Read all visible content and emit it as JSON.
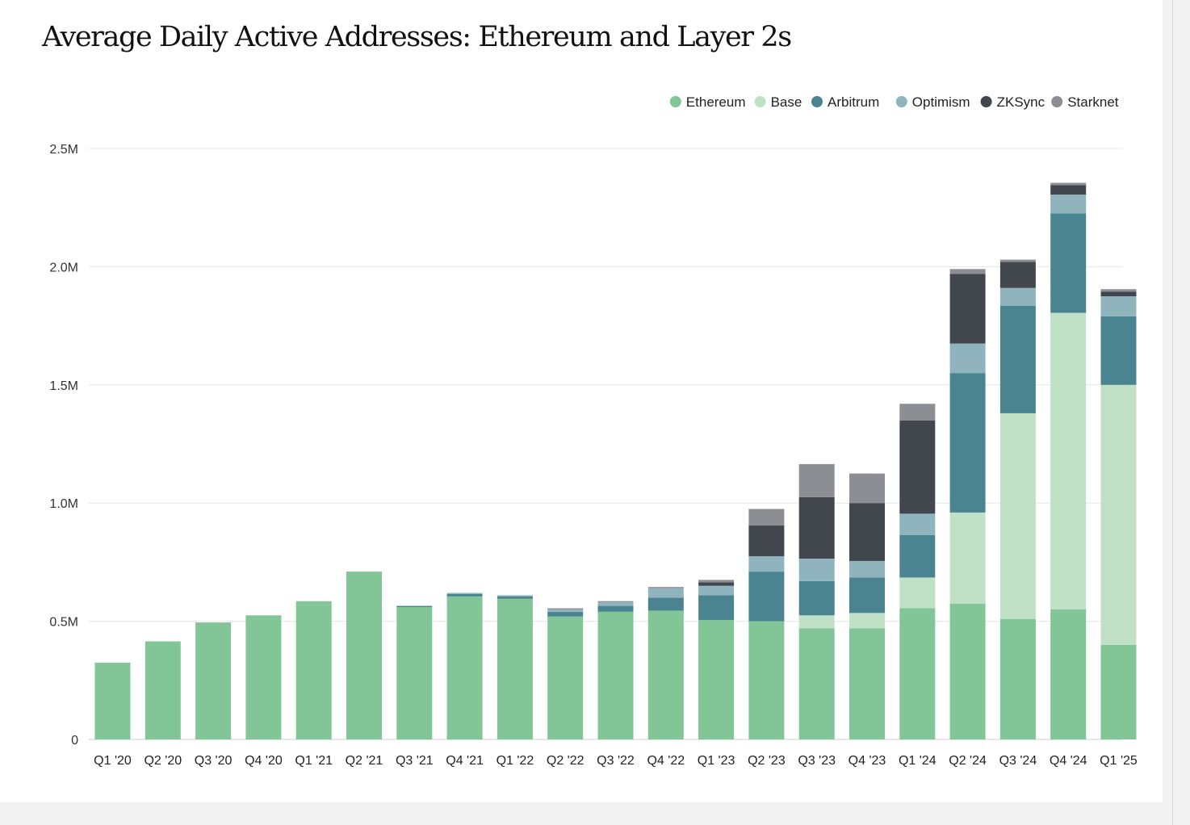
{
  "chart_data": {
    "type": "bar",
    "stacked": true,
    "title": "Average Daily Active Addresses: Ethereum and Layer 2s",
    "xlabel": "",
    "ylabel": "",
    "ylim": [
      0,
      2500000
    ],
    "y_ticks": [
      {
        "value": 0,
        "label": "0"
      },
      {
        "value": 500000,
        "label": "0.5M"
      },
      {
        "value": 1000000,
        "label": "1.0M"
      },
      {
        "value": 1500000,
        "label": "1.5M"
      },
      {
        "value": 2000000,
        "label": "2.0M"
      },
      {
        "value": 2500000,
        "label": "2.5M"
      }
    ],
    "grid": true,
    "legend_position": "top-right",
    "categories": [
      "Q1 '20",
      "Q2 '20",
      "Q3 '20",
      "Q4 '20",
      "Q1 '21",
      "Q2 '21",
      "Q3 '21",
      "Q4 '21",
      "Q1 '22",
      "Q2 '22",
      "Q3 '22",
      "Q4 '22",
      "Q1 '23",
      "Q2 '23",
      "Q3 '23",
      "Q4 '23",
      "Q1 '24",
      "Q2 '24",
      "Q3 '24",
      "Q4 '24",
      "Q1 '25"
    ],
    "series": [
      {
        "name": "Ethereum",
        "color": "#82c596",
        "values": [
          325000,
          415000,
          495000,
          525000,
          585000,
          710000,
          560000,
          605000,
          595000,
          520000,
          540000,
          545000,
          505000,
          500000,
          470000,
          470000,
          555000,
          575000,
          510000,
          550000,
          400000
        ]
      },
      {
        "name": "Base",
        "color": "#c0e1c6",
        "values": [
          0,
          0,
          0,
          0,
          0,
          0,
          0,
          0,
          0,
          0,
          0,
          0,
          0,
          0,
          55000,
          65000,
          130000,
          385000,
          870000,
          1255000,
          1100000
        ]
      },
      {
        "name": "Arbitrum",
        "color": "#4a8490",
        "values": [
          0,
          0,
          0,
          0,
          0,
          0,
          5000,
          10000,
          10000,
          20000,
          25000,
          55000,
          105000,
          210000,
          145000,
          150000,
          180000,
          590000,
          455000,
          420000,
          290000
        ]
      },
      {
        "name": "Optimism",
        "color": "#8fb4bd",
        "values": [
          0,
          0,
          0,
          0,
          0,
          0,
          0,
          5000,
          5000,
          10000,
          15000,
          40000,
          40000,
          65000,
          95000,
          70000,
          90000,
          125000,
          75000,
          80000,
          85000
        ]
      },
      {
        "name": "ZKSync",
        "color": "#42474e",
        "values": [
          0,
          0,
          0,
          0,
          0,
          0,
          0,
          0,
          0,
          0,
          0,
          0,
          15000,
          130000,
          260000,
          245000,
          395000,
          295000,
          110000,
          40000,
          20000
        ]
      },
      {
        "name": "Starknet",
        "color": "#8c8e93",
        "values": [
          0,
          0,
          0,
          0,
          0,
          0,
          0,
          0,
          0,
          5000,
          5000,
          5000,
          10000,
          70000,
          140000,
          125000,
          70000,
          20000,
          10000,
          10000,
          10000
        ]
      }
    ]
  }
}
